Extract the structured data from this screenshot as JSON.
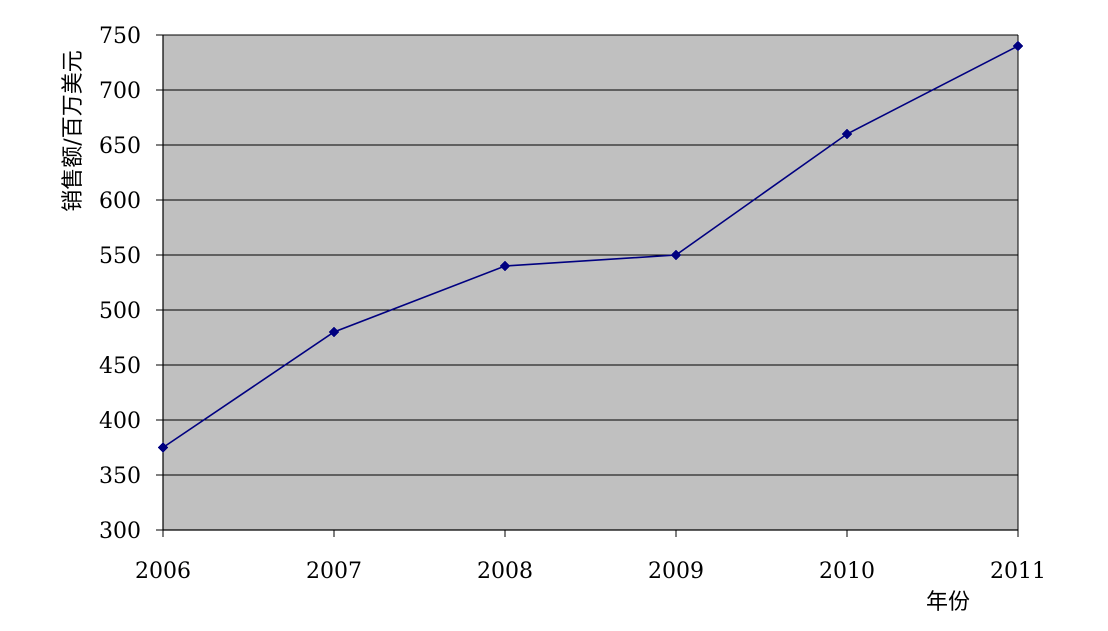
{
  "chart_data": {
    "type": "line",
    "title": "",
    "xlabel": "年份",
    "ylabel": "销售额/百万美元",
    "categories": [
      "2006",
      "2007",
      "2008",
      "2009",
      "2010",
      "2011"
    ],
    "series": [
      {
        "values": [
          375,
          480,
          540,
          550,
          660,
          740
        ]
      }
    ],
    "ylim": [
      300,
      750
    ],
    "yticks": [
      300,
      350,
      400,
      450,
      500,
      550,
      600,
      650,
      700,
      750
    ],
    "grid": true,
    "legend": "none",
    "colors": {
      "plot_background": "#c0c0c0",
      "line": "#000080",
      "marker": "#000080",
      "grid": "#000000"
    }
  }
}
